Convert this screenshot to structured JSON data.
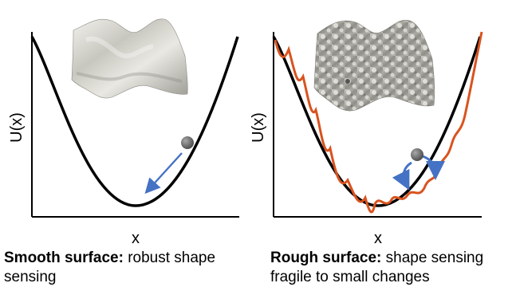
{
  "panels": {
    "left": {
      "ylabel": "U(x)",
      "xlabel": "x",
      "caption_bold": "Smooth surface:",
      "caption_rest": " robust shape sensing"
    },
    "right": {
      "ylabel": "U(x)",
      "xlabel": "x",
      "caption_bold": "Rough surface:",
      "caption_rest": " shape sensing fragile to small changes"
    }
  },
  "colors": {
    "potential": "#000000",
    "rough_curve": "#d9531e",
    "arrow": "#4472c4",
    "ball": "#6d6d6d",
    "surface": "#c9c8c0"
  },
  "icons": {
    "left_surface": "smooth-surface-render",
    "right_surface": "rough-surface-render",
    "ball": "particle-ball"
  }
}
